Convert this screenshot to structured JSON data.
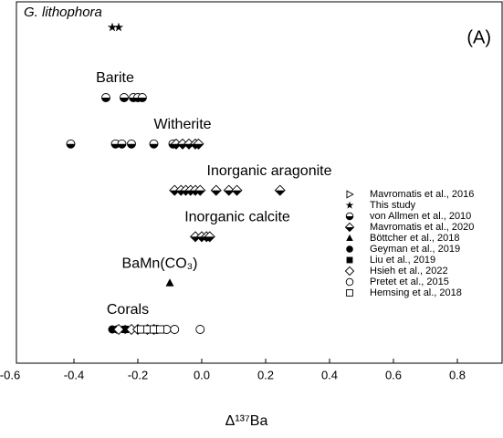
{
  "chart_data": {
    "type": "scatter",
    "title": "G. lithophora",
    "panel_label": "(A)",
    "x_label": "Δ¹³⁷Ba",
    "xlim": [
      -0.58,
      0.94
    ],
    "xticks": [
      -0.6,
      -0.4,
      -0.2,
      {
        "value": 0,
        "label": "0.0"
      },
      0.2,
      0.4,
      0.6,
      0.8
    ],
    "categories": [
      null,
      "Barite",
      "Witherite",
      "Inorganic aragonite",
      "Inorganic calcite",
      "BaMn(CO₃)",
      "Corals"
    ],
    "legend": "right",
    "series": [
      {
        "name": "Mavromatis et al., 2016",
        "marker": "triangle-right-open",
        "color": "#000000",
        "x": [
          -0.23
        ],
        "category": [
          6
        ]
      },
      {
        "name": "This study",
        "marker": "star",
        "color": "#000000",
        "x": [
          -0.28,
          -0.26
        ],
        "category": [
          0,
          0
        ]
      },
      {
        "name": "von Allmen et al., 2010",
        "marker": "half-circle",
        "color": "#000000",
        "x": [
          -0.3,
          -0.243,
          -0.214,
          -0.2,
          -0.186,
          -0.41,
          -0.27,
          -0.25,
          -0.22,
          -0.15,
          -0.09
        ],
        "category": [
          1,
          1,
          1,
          1,
          1,
          2,
          2,
          2,
          2,
          2,
          2
        ]
      },
      {
        "name": "Mavromatis et al., 2020",
        "marker": "half-diamond",
        "color": "#000000",
        "x": [
          -0.08,
          -0.06,
          -0.04,
          -0.02,
          -0.01,
          -0.085,
          -0.065,
          -0.05,
          -0.035,
          -0.02,
          -0.005,
          0.045,
          0.085,
          0.11,
          0.245,
          -0.02,
          0,
          0.015,
          0.025
        ],
        "category": [
          2,
          2,
          2,
          2,
          2,
          3,
          3,
          3,
          3,
          3,
          3,
          3,
          3,
          3,
          3,
          4,
          4,
          4,
          4
        ]
      },
      {
        "name": "Böttcher et al., 2018",
        "marker": "triangle",
        "color": "#000000",
        "x": [
          -0.1
        ],
        "category": [
          5
        ]
      },
      {
        "name": "Geyman et al., 2019",
        "marker": "circle-filled",
        "color": "#000000",
        "x": [
          -0.28,
          -0.265
        ],
        "category": [
          6,
          6
        ]
      },
      {
        "name": "Liu et al., 2019",
        "marker": "square-filled",
        "color": "#000000",
        "x": [
          -0.24
        ],
        "category": [
          6
        ]
      },
      {
        "name": "Hsieh et al., 2022",
        "marker": "diamond-open",
        "color": "#000000",
        "x": [
          -0.26,
          -0.22,
          -0.2,
          -0.17,
          -0.15
        ],
        "category": [
          6,
          6,
          6,
          6,
          6
        ]
      },
      {
        "name": "Pretet et al., 2015",
        "marker": "circle-open",
        "color": "#000000",
        "x": [
          -0.14,
          -0.11,
          -0.085,
          -0.005
        ],
        "category": [
          6,
          6,
          6,
          6
        ]
      },
      {
        "name": "Hemsing et al., 2018",
        "marker": "square-open",
        "color": "#000000",
        "x": [
          -0.19,
          -0.17,
          -0.15,
          -0.13
        ],
        "category": [
          6,
          6,
          6,
          6
        ]
      }
    ]
  }
}
